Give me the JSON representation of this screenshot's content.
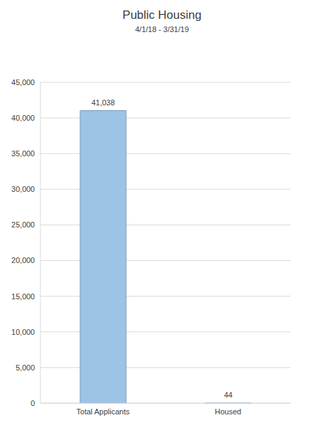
{
  "chart_data": {
    "type": "bar",
    "title": "Public Housing",
    "subtitle": "4/1/18 - 3/31/19",
    "categories": [
      "Total Applicants",
      "Housed"
    ],
    "values": [
      41038,
      44
    ],
    "value_labels": [
      "41,038",
      "44"
    ],
    "data_labels": true,
    "color": "#9dc3e6",
    "ylim": [
      0,
      45000
    ],
    "yticks": [
      0,
      {
        "value": 5000,
        "label": "5,000"
      },
      {
        "value": 10000,
        "label": "10,000"
      },
      {
        "value": 15000,
        "label": "15,000"
      },
      {
        "value": 20000,
        "label": "20,000"
      },
      {
        "value": 25000,
        "label": "25,000"
      },
      {
        "value": 30000,
        "label": "30,000"
      },
      {
        "value": 35000,
        "label": "35,000"
      },
      {
        "value": 40000,
        "label": "40,000"
      },
      {
        "value": 45000,
        "label": "45,000"
      }
    ],
    "grid": true
  }
}
